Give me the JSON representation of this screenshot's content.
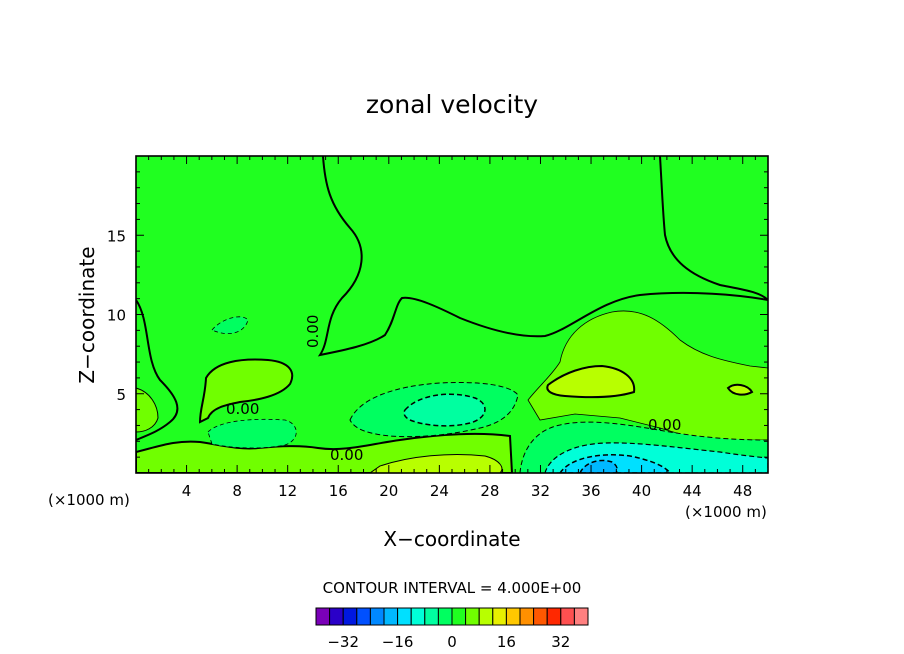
{
  "chart_data": {
    "type": "heatmap",
    "title": "zonal velocity",
    "xlabel": "X−coordinate",
    "ylabel": "Z−coordinate",
    "x_units": "(×1000 m)",
    "z_units": "(×1000 m)",
    "xlim": [
      0,
      50
    ],
    "ylim": [
      0,
      20
    ],
    "x_ticks": [
      "4",
      "8",
      "12",
      "16",
      "20",
      "24",
      "28",
      "32",
      "36",
      "40",
      "44",
      "48"
    ],
    "x_tick_values": [
      4,
      8,
      12,
      16,
      20,
      24,
      28,
      32,
      36,
      40,
      44,
      48
    ],
    "y_ticks": [
      "5",
      "10",
      "15"
    ],
    "y_tick_values": [
      5,
      10,
      15
    ],
    "contour_interval_text": "CONTOUR INTERVAL = 4.000E+00",
    "contour_interval": 4.0,
    "contour_labels": [
      "0.00",
      "0.00",
      "0.00",
      "0.00"
    ],
    "colorbar": {
      "tick_labels": [
        "−32",
        "−16",
        "0",
        "16",
        "32"
      ],
      "tick_values": [
        -32,
        -16,
        0,
        16,
        32
      ],
      "levels": [
        -40,
        -36,
        -32,
        -28,
        -24,
        -20,
        -16,
        -12,
        -8,
        -4,
        0,
        4,
        8,
        12,
        16,
        20,
        24,
        28,
        32,
        36,
        40
      ],
      "colors": [
        "#7a00b8",
        "#2a00c8",
        "#0018e0",
        "#0050ff",
        "#0088ff",
        "#00b8ff",
        "#00e0ff",
        "#00ffd8",
        "#00ffa0",
        "#00ff60",
        "#20ff20",
        "#70ff00",
        "#b8ff00",
        "#e8f000",
        "#ffc800",
        "#ff9000",
        "#ff5800",
        "#ff2800",
        "#ff5050",
        "#ff8080"
      ]
    },
    "regions": [
      {
        "name": "background",
        "value": 2,
        "color": "#20ff20"
      },
      {
        "name": "upper-right",
        "value": 6,
        "color": "#70ff00"
      },
      {
        "name": "mid-right-max",
        "value": 10,
        "color": "#b8ff00"
      },
      {
        "name": "lower-center-max",
        "value": 10,
        "color": "#b8ff00"
      },
      {
        "name": "center-min",
        "value": -8,
        "color": "#00ffa0"
      },
      {
        "name": "lower-right-min",
        "value": -16,
        "color": "#00e0ff"
      },
      {
        "name": "lower-right-core",
        "value": -20,
        "color": "#00b8ff"
      }
    ]
  }
}
